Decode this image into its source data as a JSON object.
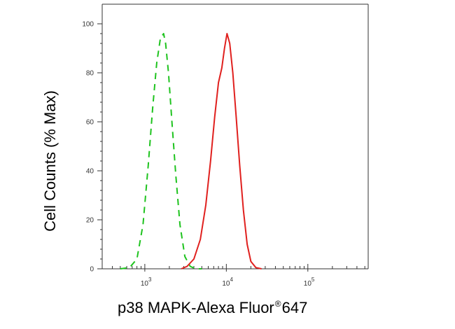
{
  "chart_data": {
    "type": "line",
    "title": "",
    "xlabel": {
      "main": "p38 MAPK-Alexa Fluor",
      "superscript": "®",
      "suffix": "647"
    },
    "ylabel": "Cell Counts (% Max)",
    "x_scale": "log",
    "xlim": [
      300,
      550000
    ],
    "ylim": [
      0,
      100
    ],
    "y_ticks": [
      "0",
      "20",
      "40",
      "60",
      "80",
      "100"
    ],
    "x_ticks": [
      {
        "base": "10",
        "exp": "3",
        "value": 1000
      },
      {
        "base": "10",
        "exp": "4",
        "value": 10000
      },
      {
        "base": "10",
        "exp": "5",
        "value": 100000
      }
    ],
    "grid": false,
    "legend": "none",
    "series": [
      {
        "color": "#1ec31e",
        "dash": "dashed",
        "x": [
          500,
          650,
          800,
          950,
          1100,
          1250,
          1400,
          1550,
          1700,
          1800,
          1950,
          2150,
          2400,
          2700,
          3100,
          3600,
          4200,
          5000
        ],
        "y": [
          0,
          0.5,
          4,
          18,
          42,
          66,
          84,
          94,
          96,
          92,
          80,
          60,
          38,
          18,
          5,
          1,
          0,
          0
        ]
      },
      {
        "color": "#e0201e",
        "dash": "solid",
        "x": [
          2800,
          3300,
          4000,
          4800,
          5600,
          6400,
          7200,
          8000,
          8800,
          9500,
          10200,
          11000,
          12000,
          13200,
          14600,
          16200,
          18000,
          20000,
          23000,
          27000
        ],
        "y": [
          0,
          1,
          4,
          12,
          26,
          44,
          62,
          76,
          82,
          90,
          96,
          92,
          80,
          62,
          42,
          24,
          10,
          3,
          0.5,
          0
        ]
      }
    ]
  }
}
